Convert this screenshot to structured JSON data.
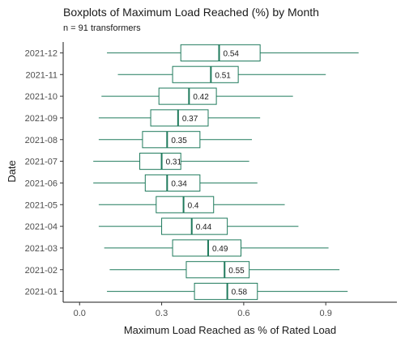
{
  "chart_data": {
    "type": "boxplot",
    "title": "Boxplots of Maximum Load Reached (%) by Month",
    "subtitle": "n = 91 transformers",
    "xlabel": "Maximum Load Reached as % of Rated Load",
    "ylabel": "Date",
    "xlim": [
      -0.06,
      1.16
    ],
    "xticks": [
      0.0,
      0.3,
      0.6,
      0.9
    ],
    "xtick_labels": [
      "0.0",
      "0.3",
      "0.6",
      "0.9"
    ],
    "grid": false,
    "box_color": "#1f7a5c",
    "categories": [
      "2021-01",
      "2021-02",
      "2021-03",
      "2021-04",
      "2021-05",
      "2021-06",
      "2021-07",
      "2021-08",
      "2021-09",
      "2021-10",
      "2021-11",
      "2021-12"
    ],
    "series": [
      {
        "category": "2021-01",
        "min": 0.1,
        "q1": 0.42,
        "median": 0.54,
        "q3": 0.65,
        "max": 0.98,
        "label": "0.58"
      },
      {
        "category": "2021-02",
        "min": 0.11,
        "q1": 0.39,
        "median": 0.53,
        "q3": 0.62,
        "max": 0.95,
        "label": "0.55"
      },
      {
        "category": "2021-03",
        "min": 0.09,
        "q1": 0.34,
        "median": 0.47,
        "q3": 0.59,
        "max": 0.91,
        "label": "0.49"
      },
      {
        "category": "2021-04",
        "min": 0.07,
        "q1": 0.3,
        "median": 0.41,
        "q3": 0.54,
        "max": 0.8,
        "label": "0.44"
      },
      {
        "category": "2021-05",
        "min": 0.07,
        "q1": 0.28,
        "median": 0.38,
        "q3": 0.49,
        "max": 0.75,
        "label": "0.4"
      },
      {
        "category": "2021-06",
        "min": 0.05,
        "q1": 0.24,
        "median": 0.32,
        "q3": 0.44,
        "max": 0.65,
        "label": "0.34"
      },
      {
        "category": "2021-07",
        "min": 0.05,
        "q1": 0.22,
        "median": 0.3,
        "q3": 0.37,
        "max": 0.62,
        "label": "0.31"
      },
      {
        "category": "2021-08",
        "min": 0.07,
        "q1": 0.23,
        "median": 0.32,
        "q3": 0.44,
        "max": 0.63,
        "label": "0.35"
      },
      {
        "category": "2021-09",
        "min": 0.07,
        "q1": 0.26,
        "median": 0.36,
        "q3": 0.47,
        "max": 0.66,
        "label": "0.37"
      },
      {
        "category": "2021-10",
        "min": 0.08,
        "q1": 0.29,
        "median": 0.4,
        "q3": 0.5,
        "max": 0.78,
        "label": "0.42"
      },
      {
        "category": "2021-11",
        "min": 0.14,
        "q1": 0.34,
        "median": 0.48,
        "q3": 0.58,
        "max": 0.9,
        "label": "0.51"
      },
      {
        "category": "2021-12",
        "min": 0.1,
        "q1": 0.37,
        "median": 0.51,
        "q3": 0.66,
        "max": 1.02,
        "label": "0.54"
      }
    ]
  }
}
